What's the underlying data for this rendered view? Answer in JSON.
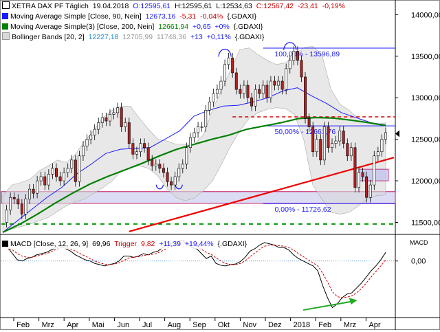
{
  "legend": {
    "price": {
      "name": "XETRA DAX PF Täglich",
      "date": "19.04.2018",
      "open": "O:12595,61",
      "high": "H:12595,61",
      "low": "L:12534,63",
      "close": "C:12567,42",
      "change": "-23,41",
      "change_pct": "-0,19%"
    },
    "ma90": {
      "label": "Moving Average Simple [Close, 90, Nein]",
      "value": "12673,16",
      "change": "-5,31",
      "change_pct": "-0,04%",
      "suffix": "{.GDAXI}",
      "color": "#1a1aff"
    },
    "ma200": {
      "label": "Moving Average Simple(3) [Close, 200, Nein]",
      "value": "12661,94",
      "change": "+0,65",
      "change_pct": "+0%",
      "suffix": "{.GDAXI}",
      "color": "#008000"
    },
    "bb": {
      "label": "Bollinger Bands [20, 2]",
      "value1": "12227,18",
      "value2": "12705,99",
      "value3": "11748,36",
      "change": "+13",
      "change_pct": "+0,11%",
      "suffix": "{.GDAXI}",
      "color": "#333333"
    }
  },
  "macd_legend": {
    "label": "MACD [Close, 12, 26, 9]",
    "value": "69,96",
    "trigger_label": "Trigger",
    "trigger_value": "9,82",
    "change": "+11,39",
    "change_pct": "+19,44%",
    "suffix": "{.GDAXI}",
    "axis_title": "MACD"
  },
  "fib_labels": {
    "f100": "100,00% - 13596,89",
    "f50": "50,00% - 12661,76",
    "f0": "0,00% - 11726,62"
  },
  "colors": {
    "candle_up": "#ffffff",
    "candle_down": "#b22222",
    "ma90": "#1a1aff",
    "ma200": "#008000",
    "bb_fill": "#d9d9d9",
    "trend": "#ee0000",
    "support_zone": "#dcdcf5",
    "macd": "#000000",
    "trigger": "#cc0000",
    "macd_arrow": "#22aa22"
  },
  "chart_data": [
    {
      "type": "candlestick",
      "title": "XETRA DAX PF Täglich",
      "x_tick_labels": [
        "Feb",
        "Mrz",
        "Apr",
        "Mai",
        "Jun",
        "Jul",
        "Aug",
        "Sep",
        "Okt",
        "Nov",
        "Dez",
        "2018",
        "Feb",
        "Mrz",
        "Apr"
      ],
      "y_tick_labels": [
        "14000,00",
        "13500,00",
        "13000,00",
        "12500,00",
        "12000,00",
        "11500,00"
      ],
      "y_ticks": [
        14000,
        13500,
        13000,
        12500,
        12000,
        11500
      ],
      "ylim": [
        11380,
        14160
      ],
      "grid": false,
      "close_trace": [
        11500,
        11650,
        11800,
        11780,
        11720,
        11600,
        11780,
        11900,
        11850,
        12000,
        12050,
        11950,
        12080,
        12150,
        12050,
        12000,
        12100,
        12150,
        12250,
        11990,
        12300,
        12420,
        12500,
        12550,
        12620,
        12700,
        12760,
        12720,
        12800,
        12820,
        12880,
        12650,
        12700,
        12450,
        12320,
        12350,
        12450,
        12400,
        12250,
        12180,
        12200,
        12150,
        12100,
        11990,
        11950,
        12050,
        12150,
        12200,
        12400,
        12520,
        12580,
        12650,
        12650,
        12850,
        12950,
        13050,
        13100,
        13200,
        13400,
        13480,
        13300,
        13100,
        13050,
        13150,
        13000,
        12900,
        13100,
        13050,
        13150,
        13000,
        13200,
        13150,
        13200,
        13100,
        13350,
        13450,
        13560,
        13450,
        13250,
        12750,
        12650,
        12350,
        12500,
        12250,
        12650,
        12400,
        12450,
        12480,
        12600,
        12450,
        12300,
        12400,
        11920,
        12100,
        12050,
        11800,
        11950,
        12300,
        12350,
        12500,
        12580
      ],
      "bollinger_upper": [
        11820,
        11950,
        11980,
        12020,
        12120,
        12180,
        12250,
        12220,
        12320,
        12480,
        12610,
        12760,
        12850,
        12900,
        12900,
        12750,
        12620,
        12500,
        12480,
        12440,
        12440,
        12440,
        12550,
        12850,
        13100,
        13330,
        13580,
        13600,
        13520,
        13450,
        13400,
        13420,
        13520,
        13600,
        13620,
        13520,
        13100,
        12920,
        12850,
        12750,
        12700,
        12680,
        12700
      ],
      "bollinger_lower": [
        11380,
        11420,
        11450,
        11480,
        11520,
        11560,
        11630,
        11700,
        11750,
        11780,
        11850,
        11920,
        12000,
        12120,
        12160,
        12180,
        12150,
        12060,
        11910,
        11800,
        11760,
        11790,
        11880,
        12000,
        12200,
        12420,
        12600,
        12750,
        12820,
        12860,
        12880,
        12870,
        12800,
        12500,
        11950,
        11780,
        11620,
        11600,
        11620,
        11700,
        11780,
        11820,
        11830
      ],
      "series": [
        {
          "name": "Moving Average Simple [Close, 90, Nein]",
          "type": "line",
          "values": [
            11380,
            11520,
            11660,
            11800,
            11920,
            12080,
            12200,
            12330,
            12380,
            12390,
            12400,
            12500,
            12600,
            12780,
            12850,
            12900,
            12910,
            12950,
            13000,
            13080,
            13120,
            13020,
            12930,
            12820,
            12760,
            12700,
            12673
          ]
        },
        {
          "name": "Moving Average Simple(3) [Close, 200, Nein]",
          "type": "line",
          "values": [
            11380,
            11480,
            11600,
            11730,
            11850,
            11960,
            12050,
            12130,
            12210,
            12300,
            12380,
            12440,
            12500,
            12550,
            12620,
            12660,
            12700,
            12750,
            12762,
            12755,
            12730,
            12700,
            12665
          ]
        }
      ],
      "annotations": {
        "fib_100": 13596.89,
        "fib_50": 12661.76,
        "fib_0": 11726.62,
        "resistance_dashed": 12770,
        "support_dashed": 11480,
        "support_zone": [
          11730,
          11870
        ],
        "small_zone": [
          12000,
          12140
        ],
        "trendline": {
          "from": 11390,
          "to": 12280
        }
      }
    },
    {
      "type": "line",
      "title": "MACD [Close, 12, 26, 9]",
      "y_tick_labels": [
        "0,00"
      ],
      "y_ticks": [
        0
      ],
      "ylim": [
        -450,
        200
      ],
      "series": [
        {
          "name": "MACD",
          "values": [
            140,
            110,
            60,
            10,
            0,
            20,
            30,
            50,
            60,
            70,
            90,
            110,
            120,
            100,
            80,
            50,
            30,
            10,
            0,
            -20,
            -30,
            -40,
            -30,
            -20,
            0,
            40,
            40,
            30,
            40,
            60,
            50,
            70,
            80,
            110,
            130,
            150,
            160,
            170,
            140,
            110,
            100,
            60,
            20,
            40,
            -20,
            -35,
            -40,
            -30,
            -25,
            -5,
            30,
            80,
            100,
            130,
            150,
            140,
            130,
            110,
            110,
            90,
            50,
            20,
            0,
            -20,
            -40,
            -80,
            -200,
            -300,
            -380,
            -350,
            -300,
            -270,
            -260,
            -220,
            -180,
            -130,
            -80,
            -40,
            10,
            70
          ]
        },
        {
          "name": "Trigger",
          "values": [
            120,
            110,
            90,
            60,
            40,
            30,
            30,
            40,
            50,
            60,
            75,
            95,
            110,
            110,
            100,
            80,
            60,
            40,
            20,
            0,
            -15,
            -25,
            -30,
            -25,
            -15,
            5,
            25,
            30,
            35,
            45,
            50,
            55,
            65,
            85,
            105,
            125,
            140,
            155,
            150,
            135,
            120,
            95,
            70,
            55,
            25,
            0,
            -20,
            -30,
            -30,
            -20,
            0,
            35,
            65,
            95,
            120,
            130,
            130,
            125,
            120,
            110,
            90,
            60,
            35,
            10,
            -15,
            -40,
            -100,
            -170,
            -250,
            -290,
            -300,
            -295,
            -285,
            -260,
            -225,
            -180,
            -130,
            -85,
            -40,
            10
          ]
        }
      ]
    }
  ]
}
